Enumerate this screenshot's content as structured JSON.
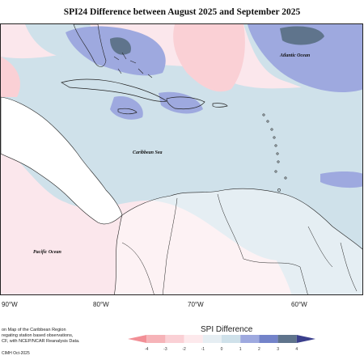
{
  "map": {
    "title": "SPI24 Difference between August 2025 and September 2025",
    "labels": {
      "atlantic": "Atlantic Ocean",
      "caribbean": "Caribbean Sea",
      "pacific": "Pacific Ocean"
    },
    "lon_labels": [
      "90°W",
      "80°W",
      "70°W",
      "60°W"
    ]
  },
  "credit": {
    "line1": "on Map of the Caribbean Region",
    "line2": "regating station based observations,",
    "line3": "CF, with NCEP/NCAR Reanalysis Data.",
    "line4": "CIMH Oct-2025"
  },
  "legend": {
    "title": "SPI Difference",
    "ticks": [
      "-4",
      "-3",
      "-2",
      "-1",
      "0",
      "1",
      "2",
      "3",
      "4"
    ],
    "colors": [
      "#f28f96",
      "#f6b3b8",
      "#fad0d5",
      "#fde9ec",
      "#e6eef3",
      "#cfe1ea",
      "#9ea9df",
      "#7383c9",
      "#5f748c",
      "#3a3f8c"
    ]
  }
}
